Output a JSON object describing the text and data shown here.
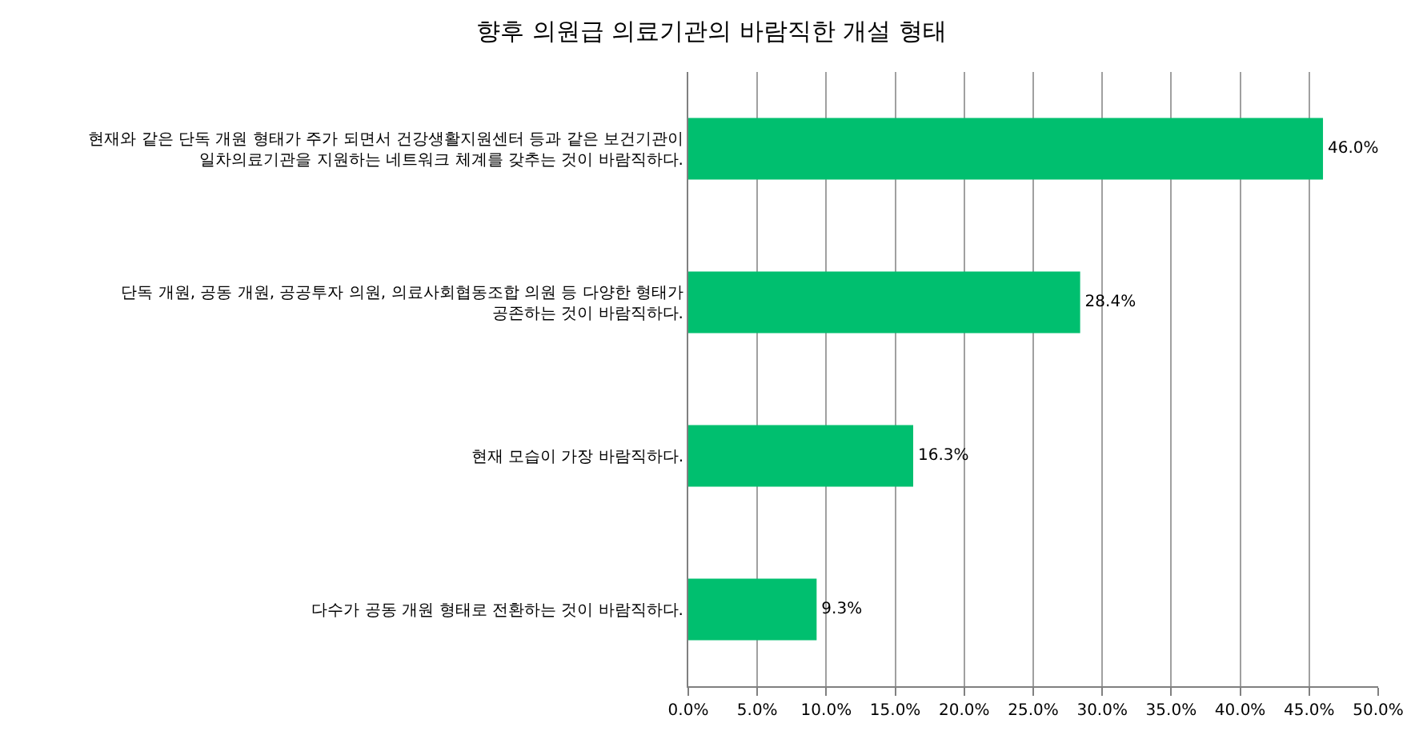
{
  "chart_data": {
    "type": "bar",
    "orientation": "horizontal",
    "title": "향후 의원급 의료기관의 바람직한 개설 형태",
    "categories": [
      "현재와 같은 단독 개원 형태가 주가 되면서 건강생활지원센터 등과 같은 보건기관이\n일차의료기관을 지원하는 네트워크 체계를 갖추는 것이 바람직하다.",
      "단독 개원, 공동 개원, 공공투자 의원, 의료사회협동조합 의원 등 다양한 형태가\n공존하는 것이 바람직하다.",
      "현재 모습이 가장 바람직하다.",
      "다수가 공동 개원 형태로 전환하는 것이 바람직하다."
    ],
    "values": [
      46.0,
      28.4,
      16.3,
      9.3
    ],
    "value_labels": [
      "46.0%",
      "28.4%",
      "16.3%",
      "9.3%"
    ],
    "color": "#00bf6f",
    "xlim": [
      0,
      50
    ],
    "xticks": [
      {
        "value": 0,
        "label": "0.0%"
      },
      {
        "value": 5,
        "label": "5.0%"
      },
      {
        "value": 10,
        "label": "10.0%"
      },
      {
        "value": 15,
        "label": "15.0%"
      },
      {
        "value": 20,
        "label": "20.0%"
      },
      {
        "value": 25,
        "label": "25.0%"
      },
      {
        "value": 30,
        "label": "30.0%"
      },
      {
        "value": 35,
        "label": "35.0%"
      },
      {
        "value": 40,
        "label": "40.0%"
      },
      {
        "value": 45,
        "label": "45.0%"
      },
      {
        "value": 50,
        "label": "50.0%"
      }
    ],
    "grid": "x",
    "legend": false
  }
}
